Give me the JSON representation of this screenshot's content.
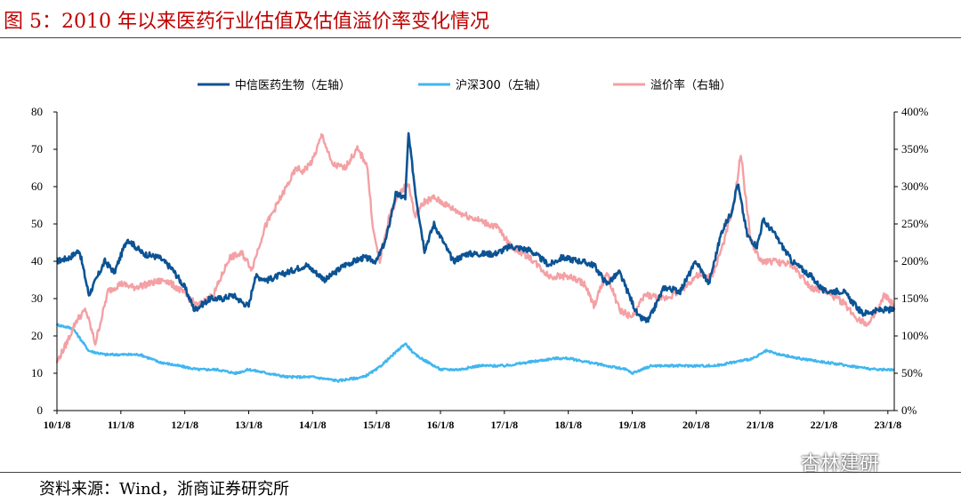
{
  "figure_title": "图 5：2010 年以来医药行业估值及估值溢价率变化情况",
  "source": "资料来源：Wind，浙商证券研究所",
  "watermark": "杏林建研",
  "chart_data": {
    "type": "line",
    "title": "",
    "legend_position": "top",
    "grid": false,
    "x_ticks": [
      "10/1/8",
      "11/1/8",
      "12/1/8",
      "13/1/8",
      "14/1/8",
      "15/1/8",
      "16/1/8",
      "17/1/8",
      "18/1/8",
      "19/1/8",
      "20/1/8",
      "21/1/8",
      "22/1/8",
      "23/1/8"
    ],
    "x_range": [
      2010.0,
      2023.1
    ],
    "y_left": {
      "ticks": [
        "0",
        "10",
        "20",
        "30",
        "40",
        "50",
        "60",
        "70",
        "80"
      ],
      "range": [
        0,
        80
      ]
    },
    "y_right": {
      "ticks": [
        "0%",
        "50%",
        "100%",
        "150%",
        "200%",
        "250%",
        "300%",
        "350%",
        "400%"
      ],
      "range": [
        0,
        4
      ]
    },
    "series": [
      {
        "name": "中信医药生物（左轴）",
        "axis": "left",
        "color": "#0b5394",
        "x": [
          2010.0,
          2010.2,
          2010.35,
          2010.5,
          2010.75,
          2010.9,
          2011.1,
          2011.35,
          2011.6,
          2011.8,
          2012.0,
          2012.15,
          2012.4,
          2012.6,
          2012.75,
          2012.9,
          2013.0,
          2013.1,
          2013.3,
          2013.6,
          2013.9,
          2014.2,
          2014.5,
          2014.8,
          2015.0,
          2015.15,
          2015.3,
          2015.45,
          2015.5,
          2015.62,
          2015.75,
          2015.9,
          2016.05,
          2016.2,
          2016.4,
          2016.6,
          2016.85,
          2017.1,
          2017.4,
          2017.7,
          2017.9,
          2018.2,
          2018.4,
          2018.6,
          2018.8,
          2018.95,
          2019.1,
          2019.25,
          2019.5,
          2019.75,
          2020.0,
          2020.2,
          2020.4,
          2020.55,
          2020.65,
          2020.8,
          2020.95,
          2021.05,
          2021.2,
          2021.5,
          2021.8,
          2022.0,
          2022.3,
          2022.6,
          2022.9,
          2023.1
        ],
        "y": [
          40,
          41,
          43,
          31,
          40,
          37,
          46,
          42,
          41,
          38,
          33,
          27,
          30,
          30,
          31,
          29,
          28,
          36,
          35,
          37,
          39,
          35,
          39,
          41,
          40,
          46,
          58,
          57,
          74,
          57,
          43,
          50,
          45,
          40,
          42,
          42,
          42,
          44,
          43,
          39,
          41,
          40,
          39,
          34,
          37,
          31,
          25,
          24,
          33,
          32,
          40,
          34,
          48,
          53,
          61,
          47,
          44,
          51,
          48,
          40,
          36,
          32,
          32,
          26,
          27,
          27
        ]
      },
      {
        "name": "沪深300（左轴）",
        "axis": "left",
        "color": "#41b6f0",
        "x": [
          2010.0,
          2010.25,
          2010.5,
          2010.75,
          2011.0,
          2011.3,
          2011.6,
          2011.9,
          2012.2,
          2012.5,
          2012.8,
          2013.0,
          2013.3,
          2013.6,
          2014.0,
          2014.4,
          2014.8,
          2015.0,
          2015.2,
          2015.45,
          2015.6,
          2015.8,
          2016.0,
          2016.3,
          2016.6,
          2017.0,
          2017.4,
          2017.8,
          2018.0,
          2018.3,
          2018.6,
          2018.9,
          2019.0,
          2019.3,
          2019.6,
          2020.0,
          2020.3,
          2020.6,
          2020.9,
          2021.1,
          2021.3,
          2021.6,
          2022.0,
          2022.4,
          2022.8,
          2023.1
        ],
        "y": [
          23,
          22,
          16,
          15,
          15,
          15,
          13,
          12,
          11,
          11,
          10,
          11,
          10,
          9,
          9,
          8,
          9,
          11,
          14,
          18,
          15,
          13,
          11,
          11,
          12,
          12,
          13,
          14,
          14,
          13,
          12,
          11,
          10,
          12,
          12,
          12,
          12,
          13,
          14,
          16,
          15,
          14,
          13,
          12,
          11,
          11
        ]
      },
      {
        "name": "溢价率（右轴）",
        "axis": "right",
        "color": "#f4a0a4",
        "x": [
          2010.0,
          2010.15,
          2010.3,
          2010.45,
          2010.6,
          2010.8,
          2011.0,
          2011.2,
          2011.45,
          2011.7,
          2011.95,
          2012.2,
          2012.45,
          2012.7,
          2012.9,
          2013.05,
          2013.25,
          2013.5,
          2013.75,
          2013.85,
          2014.0,
          2014.15,
          2014.3,
          2014.5,
          2014.7,
          2014.85,
          2014.95,
          2015.05,
          2015.2,
          2015.35,
          2015.5,
          2015.6,
          2015.75,
          2015.9,
          2016.1,
          2016.3,
          2016.6,
          2016.9,
          2017.1,
          2017.4,
          2017.7,
          2018.0,
          2018.25,
          2018.4,
          2018.6,
          2018.8,
          2019.0,
          2019.2,
          2019.5,
          2019.75,
          2020.0,
          2020.25,
          2020.45,
          2020.6,
          2020.7,
          2020.85,
          2021.0,
          2021.2,
          2021.5,
          2021.8,
          2022.0,
          2022.3,
          2022.5,
          2022.7,
          2022.85,
          2022.95,
          2023.1
        ],
        "y": [
          0.65,
          0.9,
          1.2,
          1.35,
          0.9,
          1.6,
          1.7,
          1.65,
          1.7,
          1.75,
          1.6,
          1.4,
          1.55,
          2.05,
          2.1,
          1.9,
          2.45,
          2.85,
          3.25,
          3.2,
          3.35,
          3.7,
          3.3,
          3.25,
          3.5,
          3.3,
          2.4,
          2.0,
          2.6,
          2.9,
          3.05,
          2.6,
          2.8,
          2.85,
          2.75,
          2.65,
          2.55,
          2.45,
          2.2,
          2.05,
          1.8,
          1.8,
          1.7,
          1.4,
          1.85,
          1.35,
          1.25,
          1.55,
          1.5,
          1.6,
          1.8,
          1.8,
          2.3,
          2.8,
          3.45,
          2.3,
          2.0,
          2.0,
          1.95,
          1.65,
          1.6,
          1.45,
          1.25,
          1.15,
          1.35,
          1.55,
          1.4
        ]
      }
    ]
  }
}
